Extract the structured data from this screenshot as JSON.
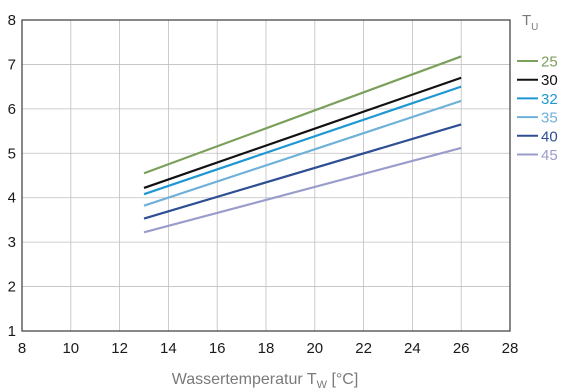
{
  "chart_data": {
    "type": "line",
    "title": "",
    "xlabel": "Wassertemperatur T",
    "xlabel_sub": "W",
    "xlabel_unit": " [°C]",
    "ylabel": "",
    "legend_title": "T",
    "legend_title_sub": "U",
    "legend_position": "right",
    "grid": true,
    "xlim": [
      8,
      28
    ],
    "ylim": [
      1,
      8
    ],
    "xticks": [
      8,
      10,
      12,
      14,
      16,
      18,
      20,
      22,
      24,
      26,
      28
    ],
    "yticks": [
      1,
      2,
      3,
      4,
      5,
      6,
      7,
      8
    ],
    "x": [
      13,
      26
    ],
    "series": [
      {
        "name": "25",
        "color": "#7ba05b",
        "values": [
          4.55,
          7.18
        ]
      },
      {
        "name": "30",
        "color": "#111111",
        "values": [
          4.22,
          6.7
        ]
      },
      {
        "name": "32",
        "color": "#1f97d2",
        "values": [
          4.08,
          6.5
        ]
      },
      {
        "name": "35",
        "color": "#6fb1d8",
        "values": [
          3.82,
          6.18
        ]
      },
      {
        "name": "40",
        "color": "#2e4f94",
        "values": [
          3.53,
          5.65
        ]
      },
      {
        "name": "45",
        "color": "#9a9ccb",
        "values": [
          3.22,
          5.12
        ]
      }
    ]
  }
}
